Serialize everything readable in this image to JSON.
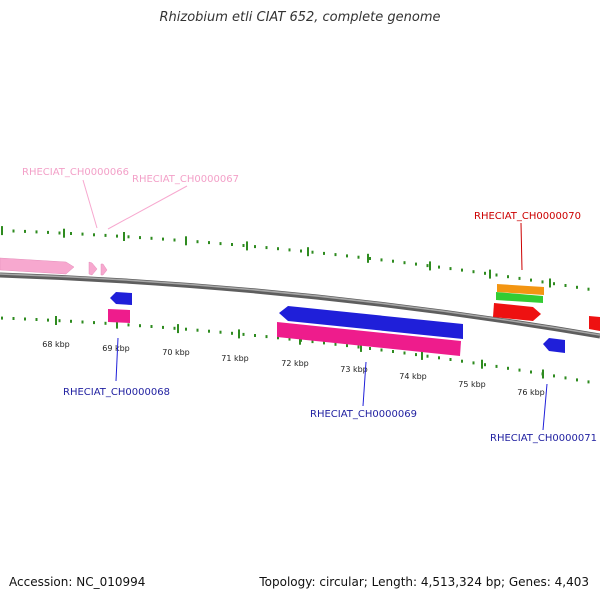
{
  "title": "Rhizobium etli CIAT 652, complete genome",
  "footer": {
    "accession": "Accession: NC_010994",
    "summary": "Topology: circular; Length: 4,513,324 bp; Genes: 4,403"
  },
  "colors": {
    "pink_light": "#f7a8cf",
    "magenta": "#ee1c8c",
    "blue": "#1f1fd9",
    "red": "#ee1111",
    "orange": "#f39512",
    "green": "#33cc33",
    "tick_green": "#2e8b1f",
    "backbone": "#7a7a7a"
  },
  "ticks": [
    {
      "label": "68 kbp"
    },
    {
      "label": "69 kbp"
    },
    {
      "label": "70 kbp"
    },
    {
      "label": "71 kbp"
    },
    {
      "label": "72 kbp"
    },
    {
      "label": "73 kbp"
    },
    {
      "label": "74 kbp"
    },
    {
      "label": "75 kbp"
    },
    {
      "label": "76 kbp"
    }
  ],
  "genes": [
    {
      "id": "RHECIAT_CH0000066",
      "color": "pink_light"
    },
    {
      "id": "RHECIAT_CH0000067",
      "color": "pink_light"
    },
    {
      "id": "RHECIAT_CH0000068",
      "color": "blue"
    },
    {
      "id": "RHECIAT_CH0000069",
      "color": "blue"
    },
    {
      "id": "RHECIAT_CH0000070",
      "color": "red"
    },
    {
      "id": "RHECIAT_CH0000071",
      "color": "blue"
    }
  ]
}
